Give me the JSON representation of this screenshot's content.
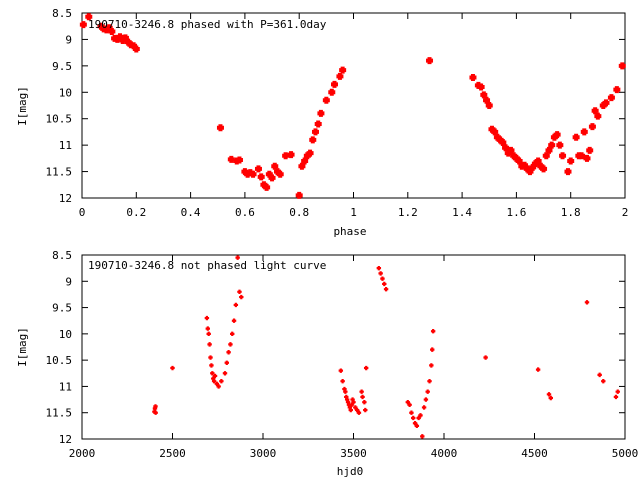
{
  "page": {
    "background": "#ffffff",
    "frame_color": "#000000",
    "point_color": "#ff0000"
  },
  "chart_data": [
    {
      "type": "scatter",
      "title": "190710-3246.8 phased with P=361.0day",
      "xlabel": "phase",
      "ylabel": "I[mag]",
      "xlim": [
        0,
        2
      ],
      "ylim": [
        8.5,
        12
      ],
      "y_inverted": true,
      "grid": false,
      "legend": "none",
      "marker_size": "large",
      "xticks": [
        "0",
        "0.2",
        "0.4",
        "0.6",
        "0.8",
        "1",
        "1.2",
        "1.4",
        "1.6",
        "1.8",
        "2"
      ],
      "yticks": [
        "8.5",
        "9",
        "9.5",
        "10",
        "10.5",
        "11",
        "11.5",
        "12"
      ],
      "series": [
        {
          "x": [
            0.005,
            0.025,
            0.07,
            0.08,
            0.09,
            0.1,
            0.11,
            0.12,
            0.13,
            0.14,
            0.15,
            0.16,
            0.17,
            0.18,
            0.19,
            0.2,
            0.51,
            0.55,
            0.57,
            0.58,
            0.6,
            0.61,
            0.62,
            0.63,
            0.65,
            0.66,
            0.67,
            0.68,
            0.69,
            0.7,
            0.71,
            0.72,
            0.73,
            0.75,
            0.77,
            0.8,
            0.81,
            0.82,
            0.83,
            0.84,
            0.85,
            0.86,
            0.87,
            0.88,
            0.9,
            0.92,
            0.93,
            0.95,
            0.96,
            1.28,
            1.44,
            1.46,
            1.47,
            1.48,
            1.49,
            1.5,
            1.51,
            1.52,
            1.53,
            1.54,
            1.55,
            1.56,
            1.57,
            1.58,
            1.59,
            1.6,
            1.61,
            1.62,
            1.63,
            1.64,
            1.65,
            1.66,
            1.67,
            1.68,
            1.69,
            1.7,
            1.71,
            1.72,
            1.73,
            1.74,
            1.75,
            1.76,
            1.77,
            1.79,
            1.8,
            1.82,
            1.83,
            1.84,
            1.85,
            1.86,
            1.87,
            1.88,
            1.89,
            1.9,
            1.92,
            1.93,
            1.95,
            1.97,
            1.99
          ],
          "y": [
            8.72,
            8.57,
            8.75,
            8.8,
            8.82,
            8.78,
            8.85,
            8.98,
            9.0,
            8.95,
            9.02,
            8.97,
            9.05,
            9.1,
            9.12,
            9.18,
            10.67,
            11.27,
            11.3,
            11.28,
            11.5,
            11.55,
            11.52,
            11.55,
            11.45,
            11.6,
            11.75,
            11.8,
            11.55,
            11.62,
            11.4,
            11.5,
            11.55,
            11.2,
            11.18,
            11.95,
            11.4,
            11.3,
            11.2,
            11.15,
            10.9,
            10.75,
            10.6,
            10.4,
            10.15,
            10.0,
            9.85,
            9.7,
            9.58,
            9.4,
            9.72,
            9.87,
            9.9,
            10.05,
            10.15,
            10.25,
            10.7,
            10.75,
            10.85,
            10.9,
            10.95,
            11.05,
            11.15,
            11.1,
            11.2,
            11.25,
            11.3,
            11.4,
            11.38,
            11.45,
            11.5,
            11.42,
            11.35,
            11.3,
            11.4,
            11.45,
            11.2,
            11.1,
            11.0,
            10.85,
            10.8,
            11.0,
            11.2,
            11.5,
            11.3,
            10.85,
            11.2,
            11.2,
            10.75,
            11.25,
            11.1,
            10.65,
            10.35,
            10.45,
            10.25,
            10.2,
            10.1,
            9.95,
            9.5
          ]
        }
      ]
    },
    {
      "type": "scatter",
      "title": "190710-3246.8 not phased light curve",
      "xlabel": "hjd0",
      "ylabel": "I[mag]",
      "xlim": [
        2000,
        5000
      ],
      "ylim": [
        8.5,
        12
      ],
      "y_inverted": true,
      "grid": false,
      "legend": "none",
      "marker_size": "small",
      "xticks": [
        "2000",
        "2500",
        "3000",
        "3500",
        "4000",
        "4500",
        "5000"
      ],
      "yticks": [
        "8.5",
        "9",
        "9.5",
        "10",
        "10.5",
        "11",
        "11.5",
        "12"
      ],
      "series": [
        {
          "x": [
            2400,
            2403,
            2406,
            2407,
            2500,
            2690,
            2695,
            2700,
            2705,
            2710,
            2715,
            2720,
            2725,
            2730,
            2735,
            2745,
            2755,
            2770,
            2790,
            2800,
            2810,
            2820,
            2830,
            2840,
            2850,
            2860,
            2870,
            2880,
            3430,
            3440,
            3450,
            3455,
            3460,
            3465,
            3470,
            3475,
            3480,
            3485,
            3490,
            3495,
            3500,
            3510,
            3520,
            3530,
            3545,
            3550,
            3560,
            3565,
            3570,
            3640,
            3650,
            3660,
            3670,
            3680,
            3800,
            3810,
            3820,
            3830,
            3840,
            3850,
            3860,
            3870,
            3880,
            3890,
            3900,
            3910,
            3920,
            3930,
            3935,
            3940,
            4230,
            4520,
            4580,
            4590,
            4790,
            4860,
            4880,
            4950,
            4960
          ],
          "y": [
            11.48,
            11.42,
            11.38,
            11.5,
            10.65,
            9.7,
            9.9,
            10.0,
            10.2,
            10.45,
            10.6,
            10.75,
            10.85,
            10.9,
            10.8,
            10.95,
            11.0,
            10.9,
            10.75,
            10.55,
            10.35,
            10.2,
            10.0,
            9.75,
            9.45,
            8.55,
            9.2,
            9.3,
            10.7,
            10.9,
            11.05,
            11.1,
            11.2,
            11.25,
            11.3,
            11.35,
            11.4,
            11.45,
            11.35,
            11.25,
            11.3,
            11.4,
            11.45,
            11.5,
            11.1,
            11.2,
            11.3,
            11.45,
            10.65,
            8.75,
            8.85,
            8.95,
            9.05,
            9.15,
            11.3,
            11.35,
            11.5,
            11.6,
            11.7,
            11.75,
            11.6,
            11.55,
            11.95,
            11.4,
            11.25,
            11.1,
            10.9,
            10.6,
            10.3,
            9.95,
            10.45,
            10.68,
            11.15,
            11.22,
            9.4,
            10.78,
            10.9,
            11.2,
            11.1
          ]
        }
      ]
    }
  ]
}
